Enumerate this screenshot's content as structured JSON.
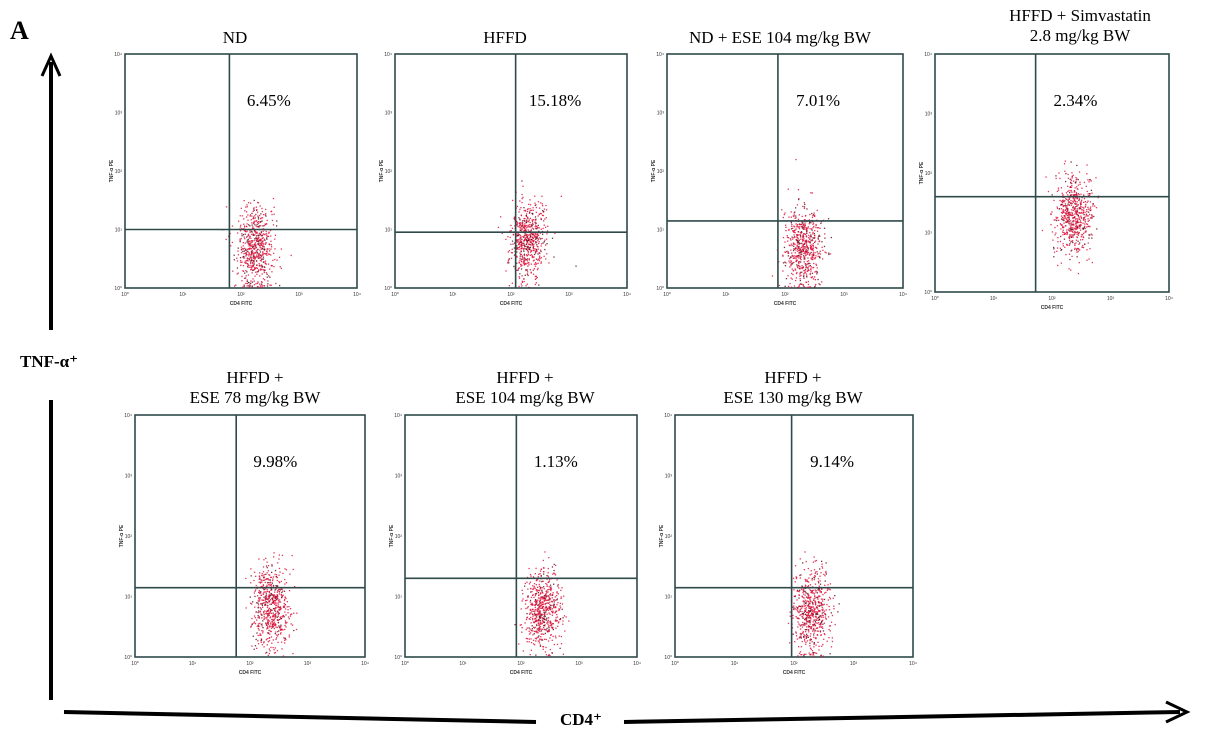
{
  "figure": {
    "panel_label": "A",
    "y_axis_label": "TNF-α⁺",
    "x_axis_label": "CD4⁺"
  },
  "chart_data": [
    {
      "type": "scatter",
      "title": "ND",
      "quadrant_percent": "6.45%",
      "gate_y": 10,
      "center_x": 170,
      "center_y": 5,
      "xlabel": "CD4 FITC",
      "ylabel": "TNF-α PE"
    },
    {
      "type": "scatter",
      "title": "HFFD",
      "quadrant_percent": "15.18%",
      "gate_y": 9,
      "center_x": 190,
      "center_y": 7,
      "xlabel": "CD4 FITC",
      "ylabel": "TNF-α PE"
    },
    {
      "type": "scatter",
      "title": "ND + ESE 104 mg/kg BW",
      "quadrant_percent": "7.01%",
      "gate_y": 14,
      "center_x": 200,
      "center_y": 5,
      "xlabel": "CD4 FITC",
      "ylabel": "TNF-α PE"
    },
    {
      "type": "scatter",
      "title": "HFFD + Simvastatin 2.8 mg/kg BW",
      "quadrant_percent": "2.34%",
      "gate_y": 40,
      "center_x": 230,
      "center_y": 20,
      "xlabel": "CD4 FITC",
      "ylabel": "TNF-α PE"
    },
    {
      "type": "scatter",
      "title": "HFFD + ESE 78 mg/kg BW",
      "quadrant_percent": "9.98%",
      "gate_y": 14,
      "center_x": 230,
      "center_y": 7,
      "xlabel": "CD4 FITC",
      "ylabel": "TNF-α PE"
    },
    {
      "type": "scatter",
      "title": "HFFD + ESE 104 mg/kg BW",
      "quadrant_percent": "1.13%",
      "gate_y": 20,
      "center_x": 230,
      "center_y": 6,
      "xlabel": "CD4 FITC",
      "ylabel": "TNF-α PE"
    },
    {
      "type": "scatter",
      "title": "HFFD + ESE 130 mg/kg BW",
      "quadrant_percent": "9.14%",
      "gate_y": 14,
      "center_x": 190,
      "center_y": 6,
      "xlabel": "CD4 FITC",
      "ylabel": "TNF-α PE"
    }
  ],
  "axis_ticks": [
    "10⁰",
    "10¹",
    "10²",
    "10³",
    "10⁴"
  ],
  "colors": {
    "gate_line": "#2f4a4a",
    "frame": "#2f4a4a",
    "dot_primary": "#e0143c",
    "dot_secondary": "#5a1020",
    "axis": "#000000"
  }
}
